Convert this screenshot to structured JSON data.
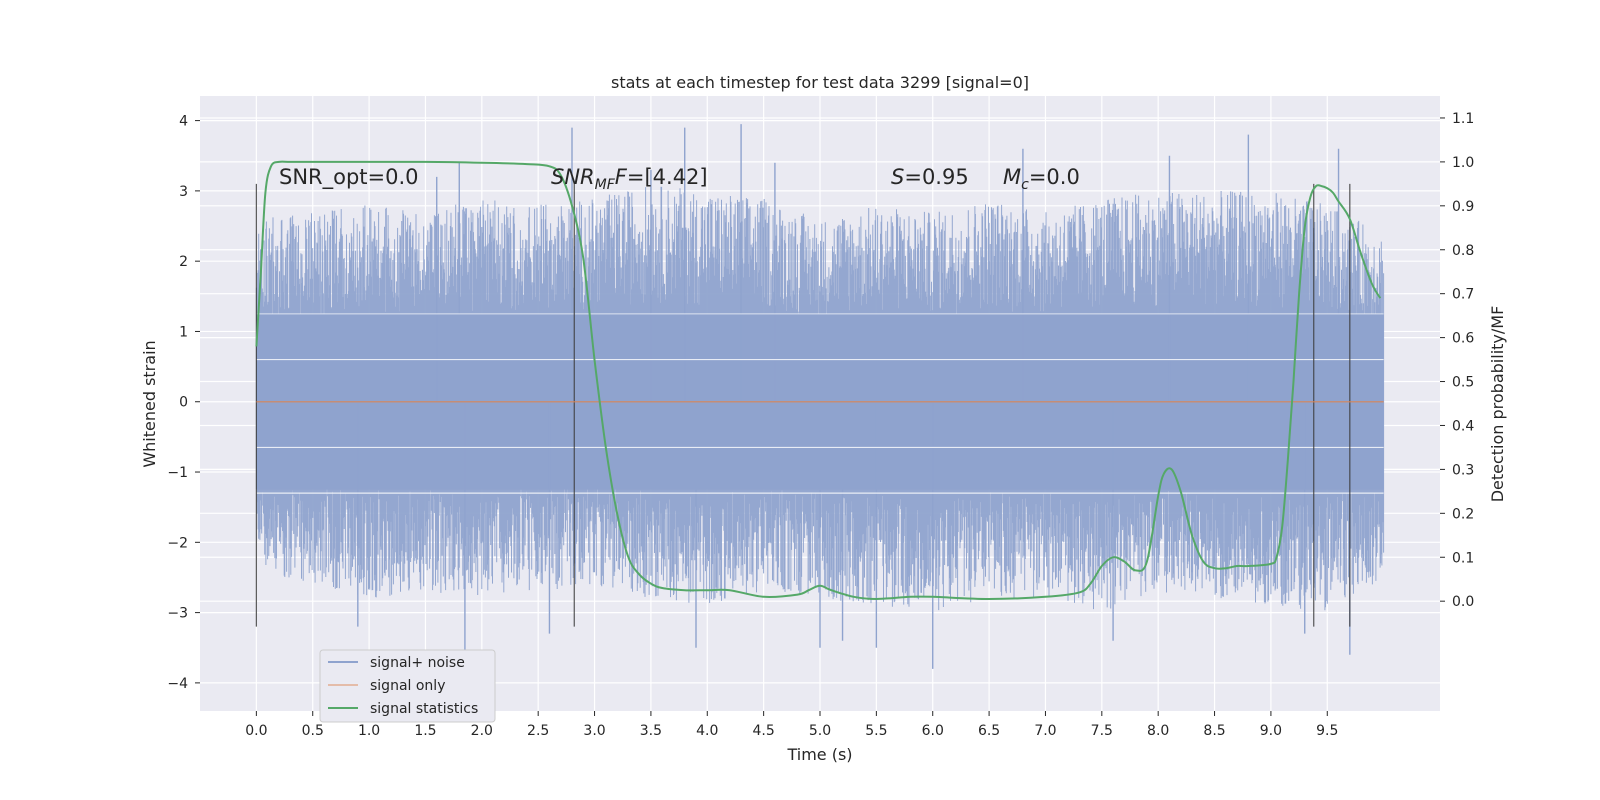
{
  "chart_data": {
    "type": "line",
    "title": "stats at each timestep for test data 3299 [signal=0]",
    "xlabel": "Time (s)",
    "ylabel": "Whitened strain",
    "ylabel_right": "Detection probability/MF",
    "xlim": [
      -0.5,
      10.5
    ],
    "ylim": [
      -4.4,
      4.35
    ],
    "ylim_right": [
      -0.25,
      1.15
    ],
    "xticks": [
      "0.0",
      "0.5",
      "1.0",
      "1.5",
      "2.0",
      "2.5",
      "3.0",
      "3.5",
      "4.0",
      "4.5",
      "5.0",
      "5.5",
      "6.0",
      "6.5",
      "7.0",
      "7.5",
      "8.0",
      "8.5",
      "9.0",
      "9.5"
    ],
    "yticks": [
      "−4",
      "−3",
      "−2",
      "−1",
      "0",
      "1",
      "2",
      "3",
      "4"
    ],
    "yticks_right": [
      "0.0",
      "0.1",
      "0.2",
      "0.3",
      "0.4",
      "0.5",
      "0.6",
      "0.7",
      "0.8",
      "0.9",
      "1.0",
      "1.1"
    ],
    "grid": true,
    "legend_position": "lower-left",
    "annotations": {
      "snr_opt": "SNR_opt=0.0",
      "snr_mf_base": "SNR",
      "snr_mf_sub": "MF",
      "snr_mf_rest": "=[4.42]",
      "s_label": "S",
      "s_rest": "=0.95",
      "mc_base": "M",
      "mc_sub": "c",
      "mc_rest": "=0.0"
    },
    "vertical_markers": [
      0.0,
      2.82,
      9.38,
      9.7
    ],
    "series": [
      {
        "name": "signal+ noise",
        "color": "#8fa3ce",
        "x_range": [
          0.0,
          10.0
        ],
        "upper_envelope": [
          [
            0.0,
            2.6
          ],
          [
            0.5,
            2.7
          ],
          [
            1.0,
            2.8
          ],
          [
            1.5,
            2.7
          ],
          [
            2.0,
            2.9
          ],
          [
            2.5,
            2.8
          ],
          [
            3.0,
            2.9
          ],
          [
            3.5,
            3.1
          ],
          [
            4.0,
            3.0
          ],
          [
            4.5,
            2.9
          ],
          [
            5.0,
            2.6
          ],
          [
            5.5,
            2.8
          ],
          [
            6.0,
            2.7
          ],
          [
            6.5,
            2.9
          ],
          [
            7.0,
            2.7
          ],
          [
            7.5,
            2.9
          ],
          [
            8.0,
            3.0
          ],
          [
            8.5,
            3.0
          ],
          [
            9.0,
            3.0
          ],
          [
            9.5,
            2.8
          ],
          [
            10.0,
            2.4
          ]
        ],
        "lower_envelope": [
          [
            0.0,
            -2.4
          ],
          [
            0.5,
            -2.6
          ],
          [
            1.0,
            -2.8
          ],
          [
            1.5,
            -2.7
          ],
          [
            2.0,
            -2.8
          ],
          [
            2.5,
            -2.7
          ],
          [
            3.0,
            -2.6
          ],
          [
            3.5,
            -2.8
          ],
          [
            4.0,
            -2.9
          ],
          [
            4.5,
            -2.7
          ],
          [
            5.0,
            -2.8
          ],
          [
            5.5,
            -2.9
          ],
          [
            6.0,
            -3.0
          ],
          [
            6.5,
            -2.8
          ],
          [
            7.0,
            -2.8
          ],
          [
            7.5,
            -3.0
          ],
          [
            8.0,
            -2.7
          ],
          [
            8.5,
            -2.8
          ],
          [
            9.0,
            -2.9
          ],
          [
            9.5,
            -3.0
          ],
          [
            10.0,
            -2.5
          ]
        ],
        "spikes": [
          [
            0.9,
            -3.2
          ],
          [
            1.6,
            3.2
          ],
          [
            1.8,
            3.4
          ],
          [
            1.85,
            -3.8
          ],
          [
            2.6,
            -3.3
          ],
          [
            2.8,
            3.9
          ],
          [
            3.5,
            3.3
          ],
          [
            3.8,
            3.9
          ],
          [
            3.9,
            -3.5
          ],
          [
            4.3,
            3.95
          ],
          [
            4.6,
            3.4
          ],
          [
            5.0,
            -3.5
          ],
          [
            5.2,
            -3.4
          ],
          [
            5.5,
            -3.5
          ],
          [
            6.0,
            -3.8
          ],
          [
            6.8,
            3.6
          ],
          [
            7.6,
            -3.4
          ],
          [
            8.1,
            3.5
          ],
          [
            8.8,
            3.8
          ],
          [
            9.3,
            -3.3
          ],
          [
            9.6,
            3.6
          ],
          [
            9.7,
            -3.6
          ]
        ]
      },
      {
        "name": "signal only",
        "color": "#dd8452",
        "x_range": [
          0.0,
          10.0
        ],
        "values": [
          [
            0.0,
            0.0
          ],
          [
            10.0,
            0.0
          ]
        ]
      },
      {
        "name": "signal statistics",
        "color": "#55a868",
        "axis": "right",
        "x": [
          0.0,
          0.04,
          0.08,
          0.13,
          0.2,
          0.3,
          0.5,
          1.0,
          1.5,
          2.0,
          2.4,
          2.6,
          2.7,
          2.8,
          2.9,
          3.0,
          3.1,
          3.2,
          3.3,
          3.4,
          3.5,
          3.6,
          3.8,
          4.0,
          4.2,
          4.5,
          4.8,
          4.9,
          5.0,
          5.1,
          5.3,
          5.5,
          5.8,
          6.0,
          6.5,
          7.0,
          7.3,
          7.4,
          7.5,
          7.6,
          7.7,
          7.8,
          7.9,
          8.0,
          8.05,
          8.12,
          8.2,
          8.3,
          8.4,
          8.5,
          8.6,
          8.7,
          8.8,
          9.0,
          9.05,
          9.1,
          9.15,
          9.2,
          9.25,
          9.3,
          9.35,
          9.4,
          9.45,
          9.5,
          9.55,
          9.6,
          9.7,
          9.8,
          9.9,
          9.97
        ],
        "values": [
          0.58,
          0.75,
          0.93,
          0.99,
          1.0,
          1.0,
          1.0,
          1.0,
          1.0,
          0.998,
          0.995,
          0.99,
          0.97,
          0.9,
          0.78,
          0.55,
          0.35,
          0.2,
          0.1,
          0.06,
          0.04,
          0.03,
          0.025,
          0.025,
          0.025,
          0.01,
          0.015,
          0.025,
          0.035,
          0.025,
          0.01,
          0.005,
          0.01,
          0.01,
          0.005,
          0.01,
          0.02,
          0.04,
          0.08,
          0.1,
          0.09,
          0.07,
          0.09,
          0.24,
          0.29,
          0.3,
          0.25,
          0.15,
          0.09,
          0.075,
          0.075,
          0.08,
          0.08,
          0.085,
          0.1,
          0.17,
          0.32,
          0.5,
          0.7,
          0.85,
          0.92,
          0.945,
          0.945,
          0.94,
          0.93,
          0.91,
          0.87,
          0.79,
          0.72,
          0.69
        ]
      }
    ]
  }
}
